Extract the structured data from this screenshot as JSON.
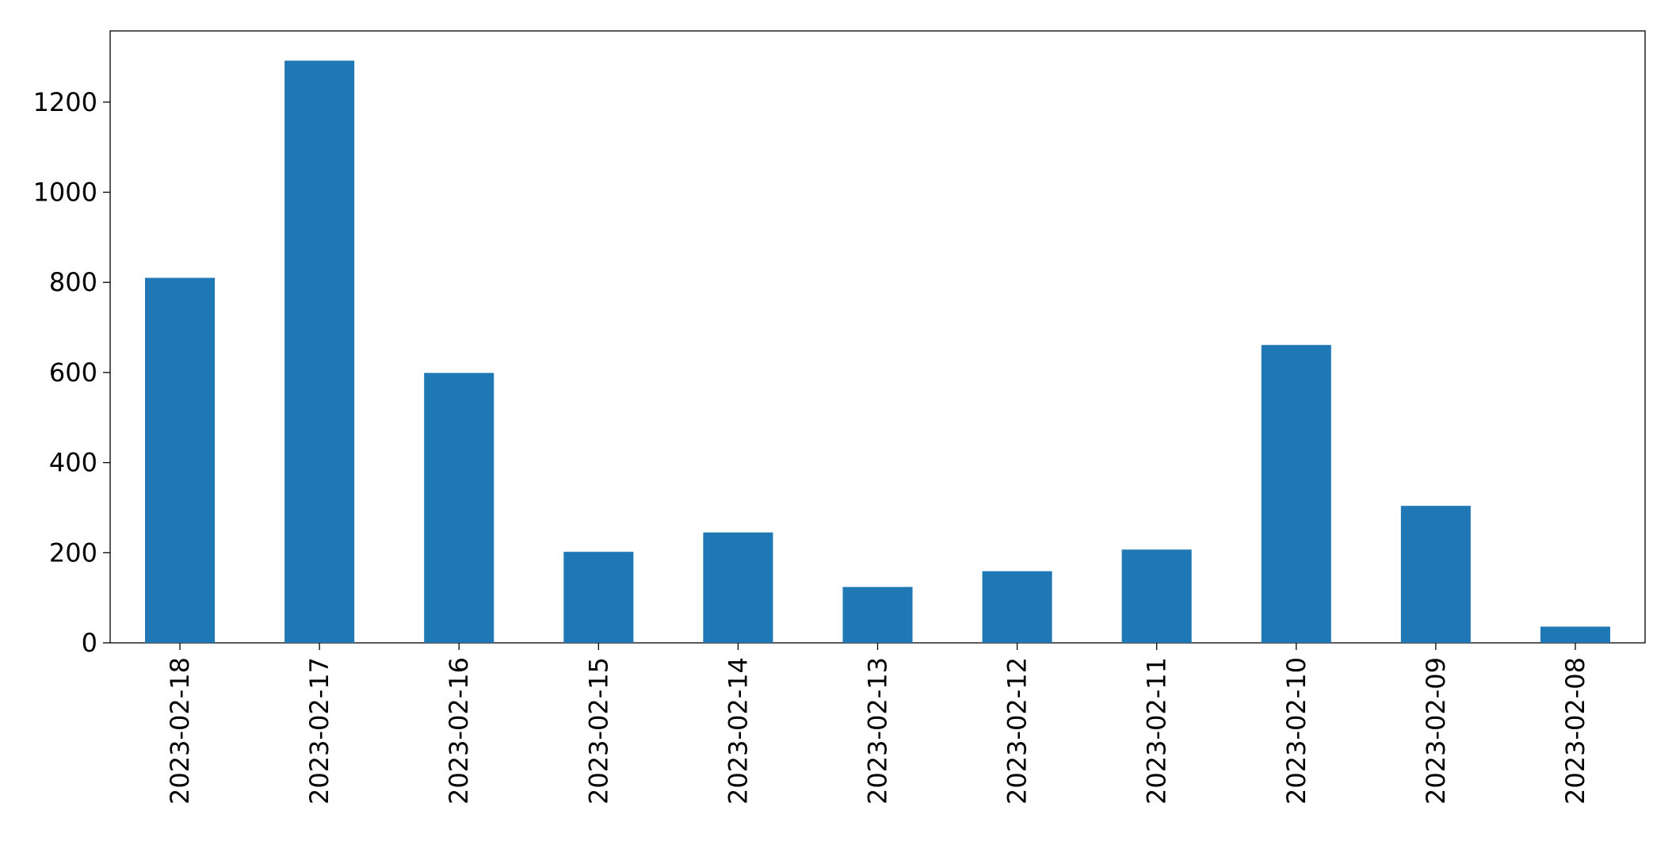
{
  "chart_data": {
    "type": "bar",
    "categories": [
      "2023-02-18",
      "2023-02-17",
      "2023-02-16",
      "2023-02-15",
      "2023-02-14",
      "2023-02-13",
      "2023-02-12",
      "2023-02-11",
      "2023-02-10",
      "2023-02-09",
      "2023-02-08"
    ],
    "values": [
      810,
      1292,
      599,
      202,
      245,
      124,
      159,
      207,
      661,
      304,
      36
    ],
    "color": "#1f77b4",
    "ylim": [
      0,
      1358
    ],
    "yticks": [
      0,
      200,
      400,
      600,
      800,
      1000,
      1200
    ],
    "grid": false
  }
}
